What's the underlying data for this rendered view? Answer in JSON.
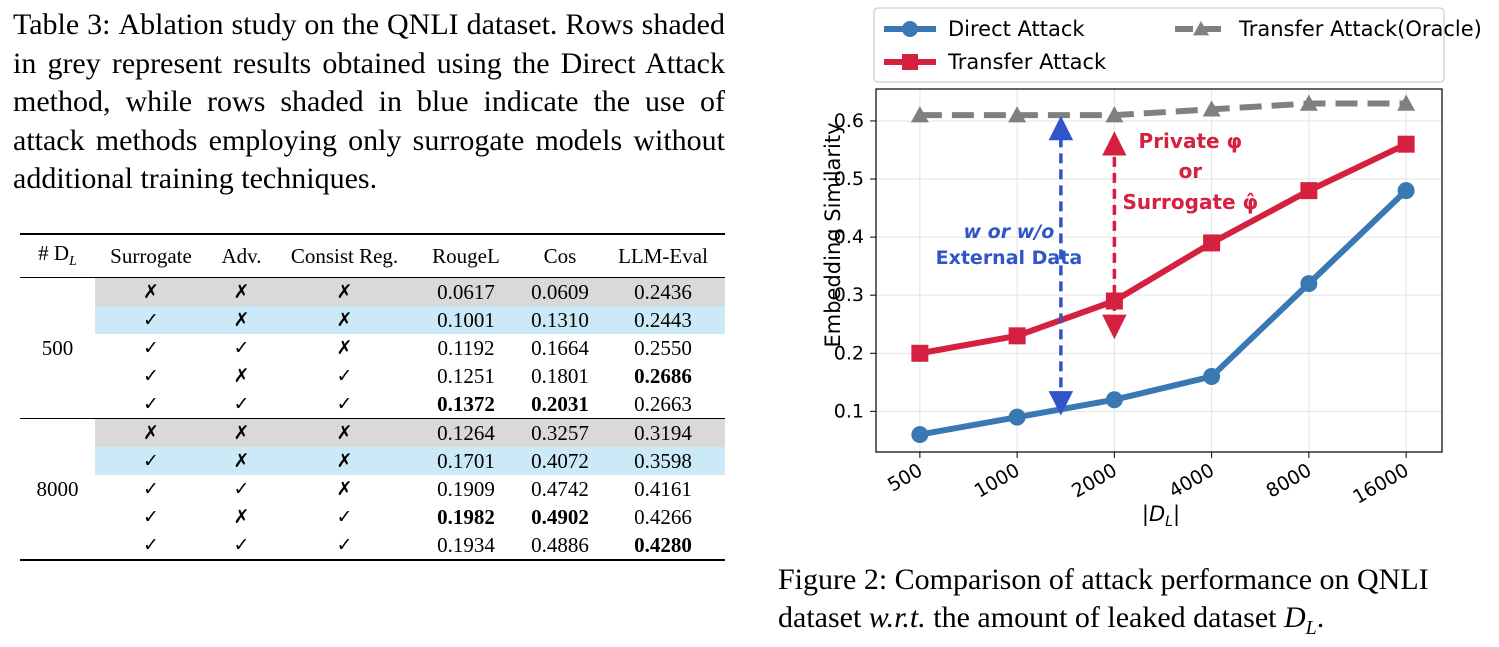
{
  "table_caption": {
    "label": "Table 3:",
    "text": "Ablation study on the QNLI dataset. Rows shaded in grey represent results obtained using the Direct Attack method, while rows shaded in blue indicate the use of attack methods employing only surrogate models without additional training techniques."
  },
  "table": {
    "headers": [
      "# D",
      "Surrogate",
      "Adv.",
      "Consist Reg.",
      "RougeL",
      "Cos",
      "LLM-Eval"
    ],
    "header_dl_subscript": "L",
    "check": "✓",
    "cross": "✗",
    "groups": [
      {
        "label": "500",
        "rows": [
          {
            "shade": "grey",
            "surrogate": "✗",
            "adv": "✗",
            "consist": "✗",
            "rougeL": "0.0617",
            "cos": "0.0609",
            "llm": "0.2436"
          },
          {
            "shade": "blue",
            "surrogate": "✓",
            "adv": "✗",
            "consist": "✗",
            "rougeL": "0.1001",
            "cos": "0.1310",
            "llm": "0.2443"
          },
          {
            "shade": "none",
            "surrogate": "✓",
            "adv": "✓",
            "consist": "✗",
            "rougeL": "0.1192",
            "cos": "0.1664",
            "llm": "0.2550"
          },
          {
            "shade": "none",
            "surrogate": "✓",
            "adv": "✗",
            "consist": "✓",
            "rougeL": "0.1251",
            "cos": "0.1801",
            "llm": "0.2686",
            "bold": [
              "llm"
            ]
          },
          {
            "shade": "none",
            "surrogate": "✓",
            "adv": "✓",
            "consist": "✓",
            "rougeL": "0.1372",
            "cos": "0.2031",
            "llm": "0.2663",
            "bold": [
              "rougeL",
              "cos"
            ]
          }
        ]
      },
      {
        "label": "8000",
        "rows": [
          {
            "shade": "grey",
            "surrogate": "✗",
            "adv": "✗",
            "consist": "✗",
            "rougeL": "0.1264",
            "cos": "0.3257",
            "llm": "0.3194"
          },
          {
            "shade": "blue",
            "surrogate": "✓",
            "adv": "✗",
            "consist": "✗",
            "rougeL": "0.1701",
            "cos": "0.4072",
            "llm": "0.3598"
          },
          {
            "shade": "none",
            "surrogate": "✓",
            "adv": "✓",
            "consist": "✗",
            "rougeL": "0.1909",
            "cos": "0.4742",
            "llm": "0.4161"
          },
          {
            "shade": "none",
            "surrogate": "✓",
            "adv": "✗",
            "consist": "✓",
            "rougeL": "0.1982",
            "cos": "0.4902",
            "llm": "0.4266",
            "bold": [
              "rougeL",
              "cos"
            ]
          },
          {
            "shade": "none",
            "surrogate": "✓",
            "adv": "✓",
            "consist": "✓",
            "rougeL": "0.1934",
            "cos": "0.4886",
            "llm": "0.4280",
            "bold": [
              "llm"
            ]
          }
        ]
      }
    ]
  },
  "chart_data": {
    "type": "line",
    "categories": [
      "500",
      "1000",
      "2000",
      "4000",
      "8000",
      "16000"
    ],
    "series": [
      {
        "name": "Direct Attack",
        "values": [
          0.06,
          0.09,
          0.12,
          0.16,
          0.32,
          0.48
        ],
        "color": "#3a78b4",
        "marker": "circle",
        "dash": false
      },
      {
        "name": "Transfer Attack",
        "values": [
          0.2,
          0.23,
          0.29,
          0.39,
          0.48,
          0.56
        ],
        "color": "#d5203f",
        "marker": "square",
        "dash": false
      },
      {
        "name": "Transfer Attack(Oracle)",
        "values": [
          0.61,
          0.61,
          0.61,
          0.62,
          0.63,
          0.63
        ],
        "color": "#808080",
        "marker": "triangle",
        "dash": true
      }
    ],
    "legend_order": [
      0,
      2,
      1
    ],
    "xlabel": "|D_L|",
    "ylabel": "Embedding Similarity",
    "ylim": [
      0.03,
      0.655
    ],
    "yticks": [
      0.1,
      0.2,
      0.3,
      0.4,
      0.5,
      0.6
    ],
    "ytick_labels": [
      "0.1",
      "0.2",
      "0.3",
      "0.4",
      "0.5",
      "0.6"
    ],
    "grid": true,
    "legend_position": "top",
    "annotations": [
      {
        "text_lines": [
          "w or w/o",
          "External Data"
        ],
        "color": "#2f55c8",
        "arrow": {
          "x_cat": 1.45,
          "from": 0.1,
          "to": 0.605
        }
      },
      {
        "text_lines": [
          "Private φ",
          "or",
          "Surrogate φ̂"
        ],
        "color": "#d5203f",
        "arrow": {
          "x_cat": 2.0,
          "from": 0.235,
          "to": 0.575
        }
      }
    ]
  },
  "figure_caption": {
    "label": "Figure 2:",
    "text_before": "Comparison of attack performance on QNLI dataset",
    "wrt": "w.r.t.",
    "text_after": "the amount of leaked dataset",
    "var": "D",
    "var_sub": "L",
    "end": "."
  }
}
